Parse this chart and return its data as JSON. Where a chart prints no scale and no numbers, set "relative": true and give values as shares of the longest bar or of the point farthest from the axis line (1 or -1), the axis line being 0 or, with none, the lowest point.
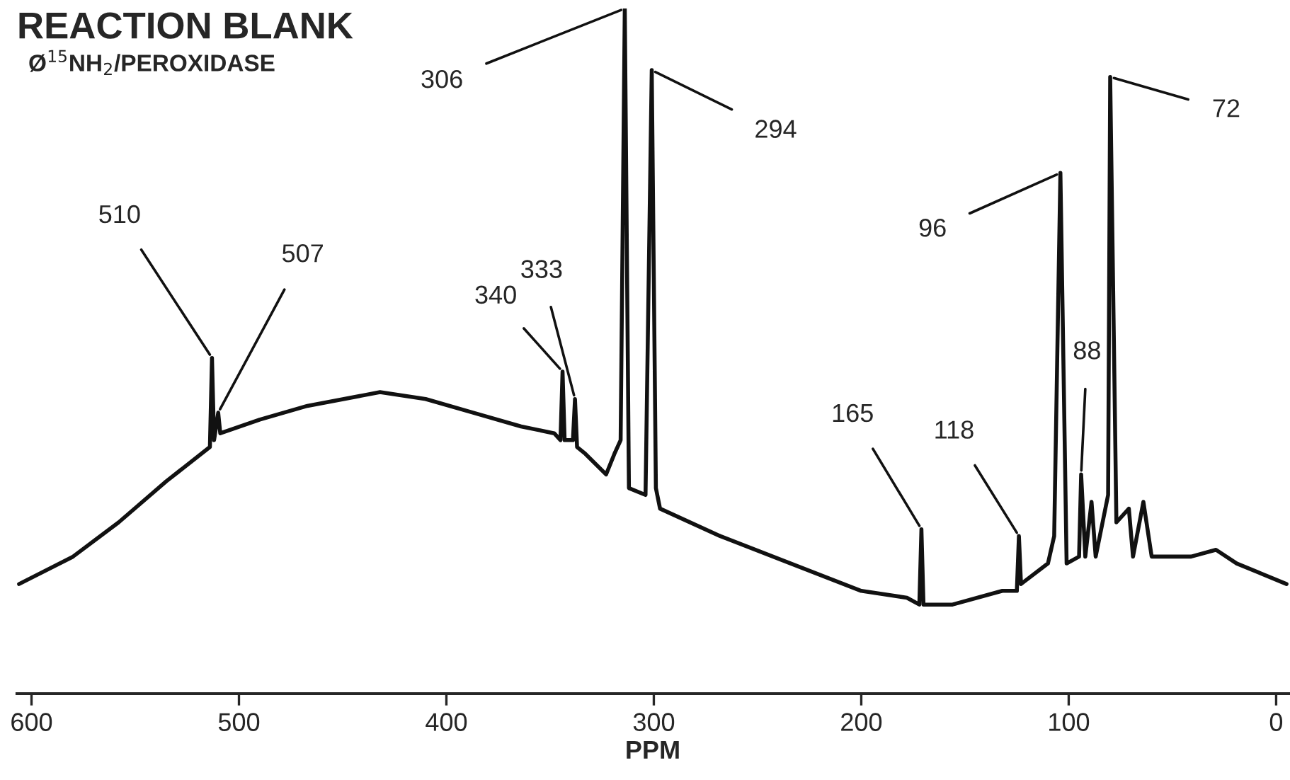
{
  "chart_data": {
    "type": "line",
    "title": "REACTION BLANK",
    "subtitle": "Ø$^{15}$NH$_{2}$/PEROXIDASE",
    "xlabel": "PPM",
    "relative": true,
    "tick_labels": "x",
    "xlim": [
      607,
      -6
    ],
    "xticks": [
      600,
      500,
      400,
      300,
      200,
      100,
      0
    ],
    "grid": false,
    "legend": false,
    "marker": "none",
    "line_style": "solid",
    "series": [
      {
        "color": "#111111",
        "x": [
          606,
          580,
          558,
          535,
          514,
          513,
          512,
          510,
          509,
          490,
          467,
          432,
          410,
          387,
          364,
          348,
          345,
          344,
          343,
          339,
          338,
          337,
          333,
          323,
          319,
          316,
          314,
          312,
          304,
          301,
          299,
          297,
          268,
          234,
          200,
          178,
          172,
          171,
          170,
          156,
          132,
          125,
          124,
          123,
          110,
          107,
          104,
          101,
          95,
          94,
          92,
          89,
          87,
          81,
          80,
          77,
          71,
          69,
          64,
          60,
          41,
          29,
          19,
          -5
        ],
        "values": [
          0.16,
          0.2,
          0.25,
          0.31,
          0.36,
          0.49,
          0.37,
          0.41,
          0.38,
          0.4,
          0.42,
          0.44,
          0.43,
          0.41,
          0.39,
          0.38,
          0.37,
          0.47,
          0.37,
          0.37,
          0.43,
          0.36,
          0.35,
          0.32,
          0.35,
          0.37,
          1.0,
          0.3,
          0.29,
          0.91,
          0.3,
          0.27,
          0.23,
          0.19,
          0.15,
          0.14,
          0.13,
          0.24,
          0.13,
          0.13,
          0.15,
          0.15,
          0.23,
          0.16,
          0.19,
          0.23,
          0.76,
          0.19,
          0.2,
          0.32,
          0.2,
          0.28,
          0.2,
          0.29,
          0.9,
          0.25,
          0.27,
          0.2,
          0.28,
          0.2,
          0.2,
          0.21,
          0.19,
          0.16
        ]
      }
    ],
    "annotations": [
      {
        "text": "510",
        "x": 513,
        "y": 0.49
      },
      {
        "text": "507",
        "x": 510,
        "y": 0.41
      },
      {
        "text": "340",
        "x": 344,
        "y": 0.47
      },
      {
        "text": "333",
        "x": 338,
        "y": 0.43
      },
      {
        "text": "306",
        "x": 314,
        "y": 1.0
      },
      {
        "text": "294",
        "x": 301,
        "y": 0.91
      },
      {
        "text": "165",
        "x": 171,
        "y": 0.24
      },
      {
        "text": "118",
        "x": 124,
        "y": 0.23
      },
      {
        "text": "96",
        "x": 104,
        "y": 0.76
      },
      {
        "text": "88",
        "x": 94,
        "y": 0.32
      },
      {
        "text": "72",
        "x": 80,
        "y": 0.9
      }
    ]
  }
}
